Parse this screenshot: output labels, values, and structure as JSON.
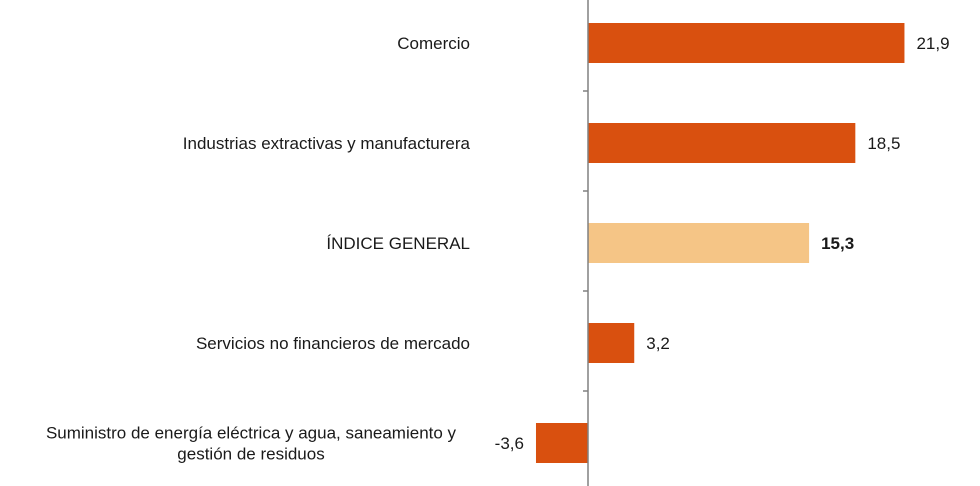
{
  "chart_data": {
    "type": "bar",
    "orientation": "horizontal",
    "title": "",
    "xlabel": "",
    "ylabel": "",
    "categories": [
      "Comercio",
      "Industrias extractivas y manufacturera",
      "ÍNDICE GENERAL",
      "Servicios no financieros de mercado",
      "Suministro de energía eléctrica y agua, saneamiento y gestión de residuos"
    ],
    "category_lines": [
      [
        "Comercio"
      ],
      [
        "Industrias extractivas y manufacturera"
      ],
      [
        "ÍNDICE GENERAL"
      ],
      [
        "Servicios no financieros de mercado"
      ],
      [
        "Suministro de energía eléctrica y agua, saneamiento y",
        "gestión de residuos"
      ]
    ],
    "values": [
      21.9,
      18.5,
      15.3,
      3.2,
      -3.6
    ],
    "value_labels": [
      "21,9",
      "18,5",
      "15,3",
      "3,2",
      "-3,6"
    ],
    "highlight_index": 2,
    "colors": {
      "bar": "#d9500f",
      "highlight": "#f5c586",
      "axis": "#808080",
      "text": "#1a1a1a"
    },
    "xlim": [
      -4,
      24
    ],
    "grid": false,
    "legend": "none"
  }
}
